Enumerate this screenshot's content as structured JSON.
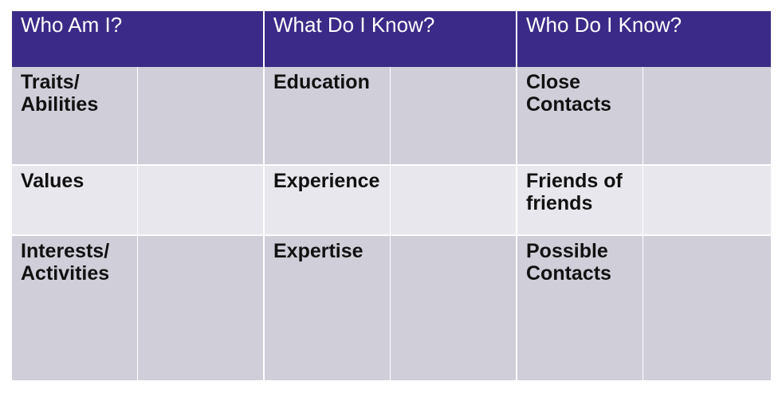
{
  "headers": [
    "Who Am I?",
    "What Do I Know?",
    "Who Do I Know?"
  ],
  "rows": [
    {
      "labels": [
        "Traits/\nAbilities",
        "Education",
        "Close\nContacts"
      ]
    },
    {
      "labels": [
        "Values",
        "Experience",
        "Friends of\nfriends"
      ]
    },
    {
      "labels": [
        "Interests/\nActivities",
        "Expertise",
        "Possible\nContacts"
      ]
    }
  ],
  "colors": {
    "header": "#3b2a87",
    "row_dark": "#d0ced9",
    "row_light": "#e8e7ed"
  }
}
